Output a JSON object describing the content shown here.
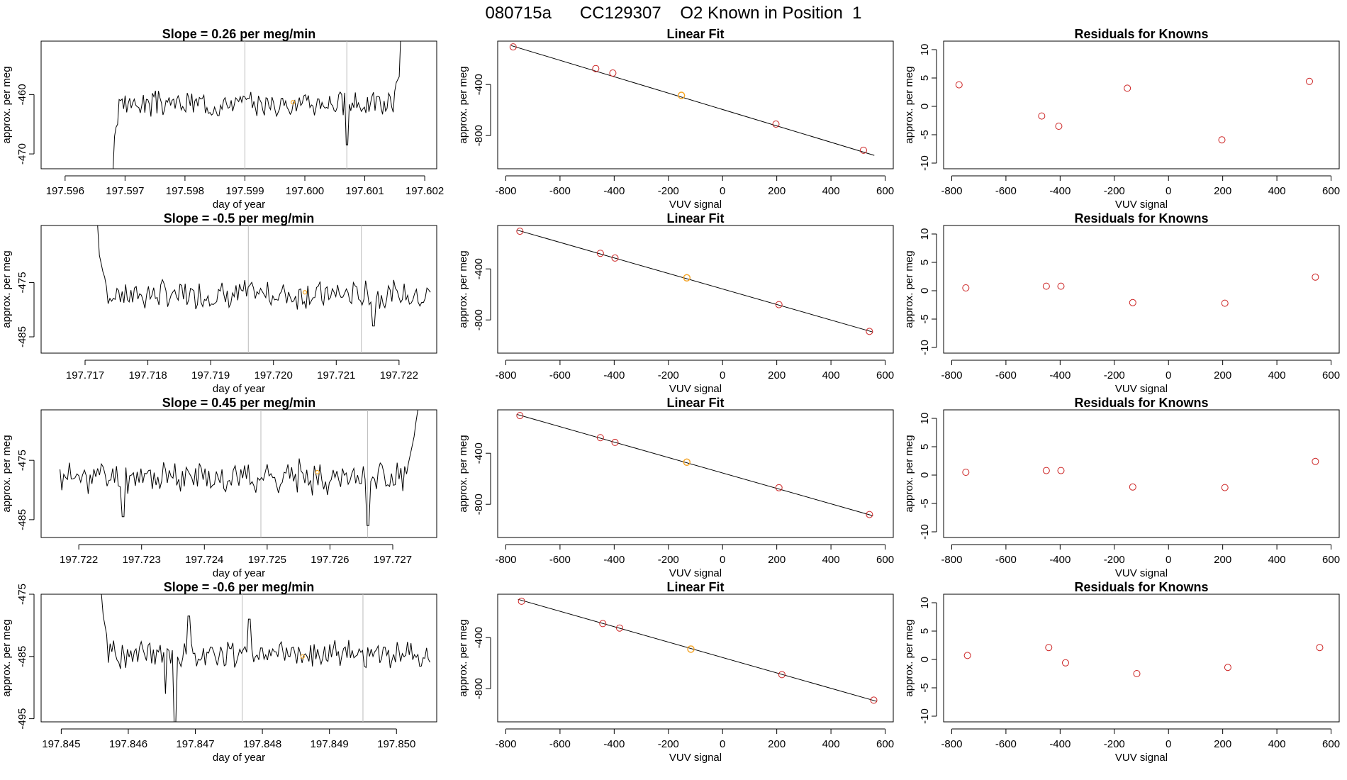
{
  "figure": {
    "title": "080715a      CC129307    O2 Known in Position  1"
  },
  "colors": {
    "line": "#000000",
    "residual_point": "#cc2222",
    "unknown_point": "#f5a623",
    "marker_line": "#bbbbbb"
  },
  "chart_data": [
    {
      "type": "line",
      "row": 1,
      "col": 1,
      "title": "Slope =  0.26  per meg/min",
      "xlabel": "day of year",
      "ylabel": "approx. per meg",
      "xlim": [
        197.5956,
        197.6022
      ],
      "ylim": [
        -472.5,
        -451.0
      ],
      "x_ticks": [
        "197.596",
        "197.597",
        "197.598",
        "197.599",
        "197.600",
        "197.601",
        "197.602"
      ],
      "y_ticks": [
        "-460",
        "-470"
      ],
      "markers": [
        197.599,
        197.6007
      ],
      "trace": {
        "start": 197.5968,
        "end": 197.6016,
        "baseline": -461.5,
        "amp": 1.6,
        "lead": [
          -472.5,
          -467.0,
          -465.5,
          -465.0
        ],
        "tail": [
          -459.5,
          -458.0,
          -457.5,
          -457.0,
          -450.0
        ],
        "dips": [
          {
            "x": 197.6007,
            "y": -468.5
          }
        ],
        "seed": 3
      },
      "unknown_point": {
        "x": 197.5998,
        "y": -461.3
      }
    },
    {
      "type": "scatter",
      "row": 1,
      "col": 2,
      "title": "Linear Fit",
      "xlabel": "VUV signal",
      "ylabel": "approx. per meg",
      "xlim": [
        -830,
        630
      ],
      "ylim": [
        -1060,
        -60
      ],
      "x_ticks": [
        "-800",
        "-600",
        "-400",
        "-200",
        "0",
        "200",
        "400",
        "600"
      ],
      "y_ticks": [
        "-400",
        "-800"
      ],
      "points": [
        [
          -773,
          -105
        ],
        [
          -468,
          -275
        ],
        [
          -405,
          -310
        ],
        [
          -152,
          -485
        ],
        [
          197,
          -710
        ],
        [
          520,
          -915
        ]
      ],
      "unknown_point": {
        "x": -152,
        "y": -485
      },
      "fit_line": [
        [
          -780,
          -95
        ],
        [
          560,
          -955
        ]
      ]
    },
    {
      "type": "scatter",
      "row": 1,
      "col": 3,
      "title": "Residuals for Knowns",
      "xlabel": "VUV signal",
      "ylabel": "approx. per meg",
      "xlim": [
        -830,
        630
      ],
      "ylim": [
        -11,
        11.5
      ],
      "x_ticks": [
        "-800",
        "-600",
        "-400",
        "-200",
        "0",
        "200",
        "400",
        "600"
      ],
      "y_ticks": [
        "10",
        "5",
        "0",
        "-5",
        "-10"
      ],
      "points": [
        [
          -773,
          3.8
        ],
        [
          -468,
          -1.7
        ],
        [
          -405,
          -3.5
        ],
        [
          -152,
          3.2
        ],
        [
          197,
          -5.9
        ],
        [
          520,
          4.4
        ]
      ]
    },
    {
      "type": "line",
      "row": 2,
      "col": 1,
      "title": "Slope =  -0.5  per meg/min",
      "xlabel": "day of year",
      "ylabel": "approx. per meg",
      "xlim": [
        197.7163,
        197.7226
      ],
      "ylim": [
        -488.0,
        -464.5
      ],
      "x_ticks": [
        "197.717",
        "197.718",
        "197.719",
        "197.720",
        "197.721",
        "197.722"
      ],
      "y_ticks": [
        "-475",
        "-485"
      ],
      "markers": [
        197.7196,
        197.7214
      ],
      "trace": {
        "start": 197.7172,
        "end": 197.7225,
        "baseline": -477.2,
        "amp": 2.0,
        "lead": [
          -464.5,
          -470.0,
          -471.5,
          -473.0,
          -474.0
        ],
        "tail": [],
        "dips": [
          {
            "x": 197.7216,
            "y": -483.0
          }
        ],
        "seed": 7
      },
      "unknown_point": {
        "x": 197.7205,
        "y": -476.8
      }
    },
    {
      "type": "scatter",
      "row": 2,
      "col": 2,
      "title": "Linear Fit",
      "xlabel": "VUV signal",
      "ylabel": "approx. per meg",
      "xlim": [
        -830,
        630
      ],
      "ylim": [
        -1060,
        -60
      ],
      "x_ticks": [
        "-800",
        "-600",
        "-400",
        "-200",
        "0",
        "200",
        "400",
        "600"
      ],
      "y_ticks": [
        "-400",
        "-800"
      ],
      "points": [
        [
          -748,
          -105
        ],
        [
          -451,
          -278
        ],
        [
          -397,
          -315
        ],
        [
          -132,
          -470
        ],
        [
          208,
          -680
        ],
        [
          542,
          -890
        ]
      ],
      "unknown_point": {
        "x": -132,
        "y": -470
      },
      "fit_line": [
        [
          -760,
          -95
        ],
        [
          555,
          -895
        ]
      ]
    },
    {
      "type": "scatter",
      "row": 2,
      "col": 3,
      "title": "Residuals for Knowns",
      "xlabel": "VUV signal",
      "ylabel": "approx. per meg",
      "xlim": [
        -830,
        630
      ],
      "ylim": [
        -11,
        11.5
      ],
      "x_ticks": [
        "-800",
        "-600",
        "-400",
        "-200",
        "0",
        "200",
        "400",
        "600"
      ],
      "y_ticks": [
        "10",
        "5",
        "0",
        "-5",
        "-10"
      ],
      "points": [
        [
          -748,
          0.5
        ],
        [
          -451,
          0.8
        ],
        [
          -397,
          0.8
        ],
        [
          -132,
          -2.1
        ],
        [
          208,
          -2.2
        ],
        [
          542,
          2.4
        ]
      ]
    },
    {
      "type": "line",
      "row": 3,
      "col": 1,
      "title": "Slope =  0.45  per meg/min",
      "xlabel": "day of year",
      "ylabel": "approx. per meg",
      "xlim": [
        197.7214,
        197.7277
      ],
      "ylim": [
        -488.0,
        -466.5
      ],
      "x_ticks": [
        "197.722",
        "197.723",
        "197.724",
        "197.725",
        "197.726",
        "197.727"
      ],
      "y_ticks": [
        "-475",
        "-485"
      ],
      "markers": [
        197.7249,
        197.7266
      ],
      "trace": {
        "start": 197.7217,
        "end": 197.7274,
        "baseline": -477.8,
        "amp": 2.1,
        "lead": [],
        "tail": [
          -475.5,
          -474.0,
          -472.5,
          -471.0,
          -468.5,
          -466.5
        ],
        "dips": [
          {
            "x": 197.7227,
            "y": -484.5
          },
          {
            "x": 197.7266,
            "y": -486.0
          }
        ],
        "seed": 11
      },
      "unknown_point": {
        "x": 197.7258,
        "y": -477.0
      }
    },
    {
      "type": "scatter",
      "row": 3,
      "col": 2,
      "title": "Linear Fit",
      "xlabel": "VUV signal",
      "ylabel": "approx. per meg",
      "xlim": [
        -830,
        630
      ],
      "ylim": [
        -1060,
        -60
      ],
      "x_ticks": [
        "-800",
        "-600",
        "-400",
        "-200",
        "0",
        "200",
        "400",
        "600"
      ],
      "y_ticks": [
        "-400",
        "-800"
      ],
      "points": [
        [
          -748,
          -105
        ],
        [
          -451,
          -278
        ],
        [
          -397,
          -315
        ],
        [
          -132,
          -470
        ],
        [
          208,
          -670
        ],
        [
          542,
          -880
        ]
      ],
      "unknown_point": {
        "x": -132,
        "y": -470
      },
      "fit_line": [
        [
          -760,
          -95
        ],
        [
          555,
          -890
        ]
      ]
    },
    {
      "type": "scatter",
      "row": 3,
      "col": 3,
      "title": "Residuals for Knowns",
      "xlabel": "VUV signal",
      "ylabel": "approx. per meg",
      "xlim": [
        -830,
        630
      ],
      "ylim": [
        -11,
        11.5
      ],
      "x_ticks": [
        "-800",
        "-600",
        "-400",
        "-200",
        "0",
        "200",
        "400",
        "600"
      ],
      "y_ticks": [
        "10",
        "5",
        "0",
        "-5",
        "-10"
      ],
      "points": [
        [
          -748,
          0.5
        ],
        [
          -451,
          0.8
        ],
        [
          -397,
          0.8
        ],
        [
          -132,
          -2.1
        ],
        [
          208,
          -2.2
        ],
        [
          542,
          2.4
        ]
      ]
    },
    {
      "type": "line",
      "row": 4,
      "col": 1,
      "title": "Slope =  -0.6  per meg/min",
      "xlabel": "day of year",
      "ylabel": "approx. per meg",
      "xlim": [
        197.8447,
        197.8506
      ],
      "ylim": [
        -495.5,
        -475.0
      ],
      "x_ticks": [
        "197.845",
        "197.846",
        "197.847",
        "197.848",
        "197.849",
        "197.850"
      ],
      "y_ticks": [
        "-475",
        "-485",
        "-495"
      ],
      "markers": [
        197.8477,
        197.8495
      ],
      "trace": {
        "start": 197.8456,
        "end": 197.8505,
        "baseline": -484.6,
        "amp": 1.7,
        "lead": [
          -475.0,
          -478.5,
          -480.0,
          -481.5
        ],
        "tail": [],
        "dips": [
          {
            "x": 197.8467,
            "y": -495.5
          },
          {
            "x": 197.84655,
            "y": -491.0
          }
        ],
        "spikes": [
          {
            "x": 197.8469,
            "y": -478.5
          },
          {
            "x": 197.8478,
            "y": -479.0
          }
        ],
        "seed": 19
      },
      "unknown_point": {
        "x": 197.8486,
        "y": -485.0
      }
    },
    {
      "type": "scatter",
      "row": 4,
      "col": 2,
      "title": "Linear Fit",
      "xlabel": "VUV signal",
      "ylabel": "approx. per meg",
      "xlim": [
        -830,
        630
      ],
      "ylim": [
        -1060,
        -60
      ],
      "x_ticks": [
        "-800",
        "-600",
        "-400",
        "-200",
        "0",
        "200",
        "400",
        "600"
      ],
      "y_ticks": [
        "-400",
        "-800"
      ],
      "points": [
        [
          -742,
          -115
        ],
        [
          -442,
          -290
        ],
        [
          -380,
          -325
        ],
        [
          -117,
          -490
        ],
        [
          219,
          -690
        ],
        [
          558,
          -890
        ]
      ],
      "unknown_point": {
        "x": -117,
        "y": -490
      },
      "fit_line": [
        [
          -755,
          -100
        ],
        [
          570,
          -900
        ]
      ]
    },
    {
      "type": "scatter",
      "row": 4,
      "col": 3,
      "title": "Residuals for Knowns",
      "xlabel": "VUV signal",
      "ylabel": "approx. per meg",
      "xlim": [
        -830,
        630
      ],
      "ylim": [
        -11,
        11.5
      ],
      "x_ticks": [
        "-800",
        "-600",
        "-400",
        "-200",
        "0",
        "200",
        "400",
        "600"
      ],
      "y_ticks": [
        "10",
        "5",
        "0",
        "-5",
        "-10"
      ],
      "points": [
        [
          -742,
          0.7
        ],
        [
          -442,
          2.1
        ],
        [
          -380,
          -0.6
        ],
        [
          -117,
          -2.5
        ],
        [
          219,
          -1.4
        ],
        [
          558,
          2.1
        ]
      ]
    }
  ]
}
